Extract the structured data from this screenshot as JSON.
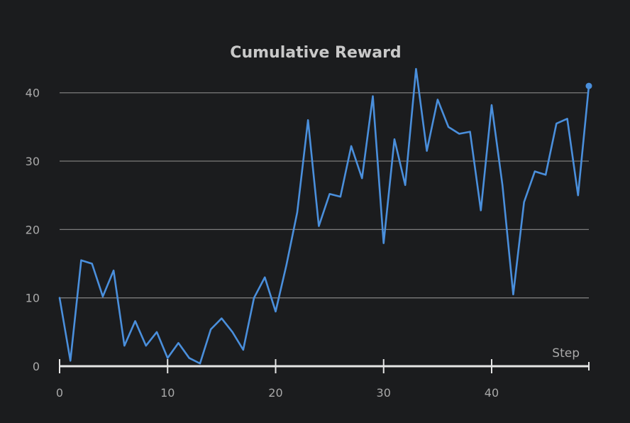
{
  "chart_data": {
    "type": "line",
    "title": "Cumulative Reward",
    "xlabel": "Step",
    "ylabel": "",
    "xlim": [
      0,
      49
    ],
    "ylim": [
      0,
      43.5
    ],
    "x_ticks": [
      0,
      10,
      20,
      30,
      40
    ],
    "y_ticks": [
      0,
      10,
      20,
      30,
      40
    ],
    "grid": "horizontal",
    "colors": {
      "background": "#1b1c1e",
      "line": "#4a8fdc",
      "grid": "#7c7c7c",
      "axis": "#e6e6e6",
      "text": "#a9a9a9",
      "title": "#c9c9c9"
    },
    "series": [
      {
        "x": [
          0,
          1,
          2,
          3,
          4,
          5,
          6,
          7,
          8,
          9,
          10,
          11,
          12,
          13,
          14,
          15,
          16,
          17,
          18,
          19,
          20,
          21,
          22,
          23,
          24,
          25,
          26,
          27,
          28,
          29,
          30,
          31,
          32,
          33,
          34,
          35,
          36,
          37,
          38,
          39,
          40,
          41,
          42,
          43,
          44,
          45,
          46,
          47,
          48,
          49
        ],
        "values": [
          10,
          0.8,
          15.5,
          15,
          10.2,
          14,
          3,
          6.6,
          3,
          5,
          1.2,
          3.4,
          1.2,
          0.4,
          5.4,
          7,
          5,
          2.4,
          10,
          13,
          8,
          14.8,
          22.5,
          36,
          20.5,
          25.2,
          24.8,
          32.2,
          27.5,
          39.5,
          18,
          33.2,
          26.5,
          43.5,
          31.5,
          39,
          35,
          34,
          34.3,
          22.8,
          38.2,
          26.5,
          10.5,
          24,
          28.5,
          28,
          35.5,
          36.2,
          25,
          41
        ]
      }
    ]
  }
}
